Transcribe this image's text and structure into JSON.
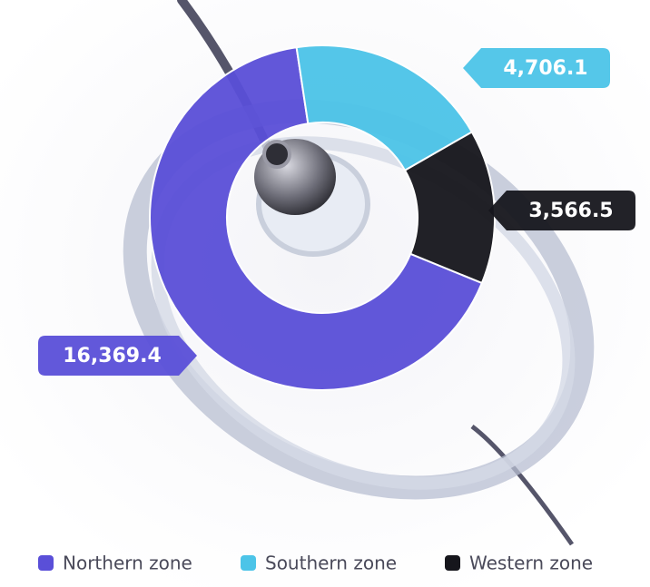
{
  "chart_data": {
    "type": "donut",
    "categories": [
      "Northern zone",
      "Southern zone",
      "Western zone"
    ],
    "values": [
      16369.4,
      4706.1,
      3566.5
    ],
    "value_labels": [
      "16,369.4",
      "4,706.1",
      "3,566.5"
    ],
    "colors": [
      "#5a4fd8",
      "#4cc4e8",
      "#16161c"
    ]
  }
}
